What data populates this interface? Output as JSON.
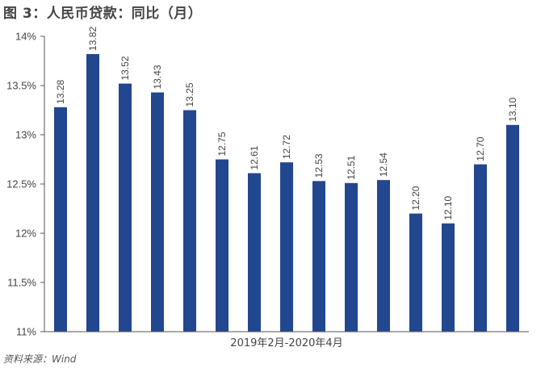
{
  "title": "图 3：人民币贷款：同比（月）",
  "source": "资料来源：Wind",
  "chart_data": {
    "type": "bar",
    "title": "图 3：人民币贷款：同比（月）",
    "xlabel": "2019年2月-2020年4月",
    "ylabel": "",
    "ylim": [
      11,
      14
    ],
    "ytick_step": 0.5,
    "yticks": [
      "11%",
      "11.5%",
      "12%",
      "12.5%",
      "13%",
      "13.5%",
      "14%"
    ],
    "categories": [
      "",
      "",
      "",
      "",
      "",
      "",
      "",
      "",
      "",
      "",
      "",
      "",
      "",
      "",
      ""
    ],
    "values": [
      13.28,
      13.82,
      13.52,
      13.43,
      13.25,
      12.75,
      12.61,
      12.72,
      12.53,
      12.51,
      12.54,
      12.2,
      12.1,
      12.7,
      13.1
    ],
    "data_labels": [
      "13.28",
      "13.82",
      "13.52",
      "13.43",
      "13.25",
      "12.75",
      "12.61",
      "12.72",
      "12.53",
      "12.51",
      "12.54",
      "12.20",
      "12.10",
      "12.70",
      "13.10"
    ],
    "bar_color": "#22478f",
    "grid": false,
    "legend": "none"
  }
}
